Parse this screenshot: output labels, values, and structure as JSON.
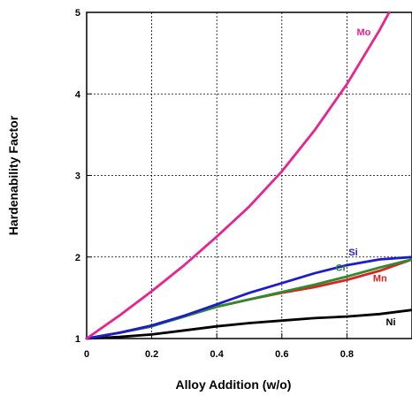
{
  "chart_data": {
    "type": "line",
    "xlabel": "Alloy Addition (w/o)",
    "ylabel": "Hardenability Factor",
    "xlim": [
      0,
      1.0
    ],
    "ylim": [
      1,
      5
    ],
    "x_ticks": [
      0,
      0.2,
      0.4,
      0.6,
      0.8
    ],
    "x_tick_labels": [
      "0",
      "0.2",
      "0.4",
      "0.6",
      "0.8"
    ],
    "y_ticks": [
      1,
      2,
      3,
      4,
      5
    ],
    "y_tick_labels": [
      "1",
      "2",
      "3",
      "4",
      "5"
    ],
    "grid": true,
    "series": [
      {
        "name": "Mo",
        "color": "#e8238f",
        "x": [
          0,
          0.1,
          0.2,
          0.3,
          0.4,
          0.5,
          0.6,
          0.7,
          0.8,
          0.9,
          0.93
        ],
        "y": [
          1.0,
          1.28,
          1.58,
          1.9,
          2.25,
          2.62,
          3.05,
          3.55,
          4.12,
          4.78,
          5.0
        ]
      },
      {
        "name": "Si",
        "color": "#1c1ccc",
        "x": [
          0,
          0.1,
          0.2,
          0.3,
          0.4,
          0.5,
          0.6,
          0.7,
          0.8,
          0.9,
          1.0
        ],
        "y": [
          1.0,
          1.07,
          1.16,
          1.28,
          1.42,
          1.56,
          1.68,
          1.8,
          1.9,
          1.97,
          2.0
        ]
      },
      {
        "name": "Cr",
        "color": "#2e8b2e",
        "x": [
          0,
          0.1,
          0.2,
          0.3,
          0.4,
          0.5,
          0.6,
          0.7,
          0.8,
          0.9,
          1.0
        ],
        "y": [
          1.0,
          1.07,
          1.15,
          1.27,
          1.39,
          1.48,
          1.57,
          1.66,
          1.76,
          1.87,
          1.97
        ]
      },
      {
        "name": "Mn",
        "color": "#dd2222",
        "x": [
          0,
          0.1,
          0.2,
          0.3,
          0.4,
          0.5,
          0.6,
          0.7,
          0.8,
          0.9,
          1.0
        ],
        "y": [
          1.0,
          1.07,
          1.15,
          1.28,
          1.39,
          1.48,
          1.56,
          1.63,
          1.72,
          1.83,
          1.97
        ]
      },
      {
        "name": "Ni",
        "color": "#000000",
        "x": [
          0,
          0.1,
          0.2,
          0.3,
          0.4,
          0.5,
          0.6,
          0.7,
          0.8,
          0.9,
          1.0
        ],
        "y": [
          1.0,
          1.02,
          1.05,
          1.1,
          1.15,
          1.19,
          1.22,
          1.25,
          1.27,
          1.3,
          1.35
        ]
      }
    ]
  }
}
